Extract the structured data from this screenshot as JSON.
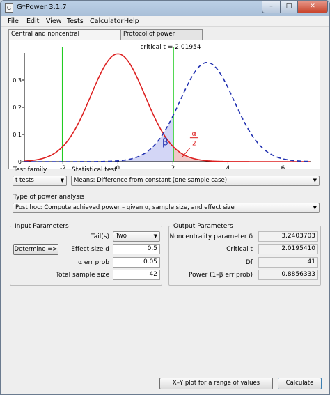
{
  "window": {
    "title": "G*Power 3.1.7",
    "minimize": "–",
    "maximize": "□",
    "close": "✕"
  },
  "menu": [
    "File",
    "Edit",
    "View",
    "Tests",
    "Calculator",
    "Help"
  ],
  "tabs": [
    "Central and noncentral distributions",
    "Protocol of power analyses"
  ],
  "chart_data": {
    "type": "line",
    "title": "critical t = 2.01954",
    "xticks": [
      "-2",
      "0",
      "2",
      "4",
      "6"
    ],
    "yticks": [
      "0",
      "0.1",
      "0.2",
      "0.3"
    ],
    "xlim": [
      -3.4,
      7.0
    ],
    "ylim": [
      0,
      0.4
    ],
    "critical_t": 2.01954,
    "noncentrality": 3.2403703,
    "series": [
      {
        "curve": "central t",
        "color": "#dd2020",
        "dashed": false,
        "df": 41,
        "center": 0
      },
      {
        "curve": "noncentral t",
        "color": "#2030b0",
        "dashed": true,
        "df": 41,
        "center": 3.2403703
      }
    ],
    "annotations": {
      "beta": "β",
      "alpha_num": "α",
      "alpha_den": "2"
    }
  },
  "test_family": {
    "label": "Test family",
    "value": "t tests"
  },
  "statistical_test": {
    "label": "Statistical test",
    "value": "Means: Difference from constant (one sample case)"
  },
  "power_analysis": {
    "label": "Type of power analysis",
    "value": "Post hoc: Compute achieved power – given α, sample size, and effect size"
  },
  "input": {
    "header": "Input Parameters",
    "tails_label": "Tail(s)",
    "tails_value": "Two",
    "determine_button": "Determine =>",
    "effect_label": "Effect size d",
    "effect_value": "0.5",
    "alpha_label": "α err prob",
    "alpha_value": "0.05",
    "n_label": "Total sample size",
    "n_value": "42"
  },
  "output": {
    "header": "Output Parameters",
    "ncp_label": "Noncentrality parameter δ",
    "ncp_value": "3.2403703",
    "crit_label": "Critical t",
    "crit_value": "2.0195410",
    "df_label": "Df",
    "df_value": "41",
    "power_label": "Power (1–β err prob)",
    "power_value": "0.8856333"
  },
  "buttons": {
    "xy_plot": "X–Y plot for a range of values",
    "calculate": "Calculate"
  }
}
